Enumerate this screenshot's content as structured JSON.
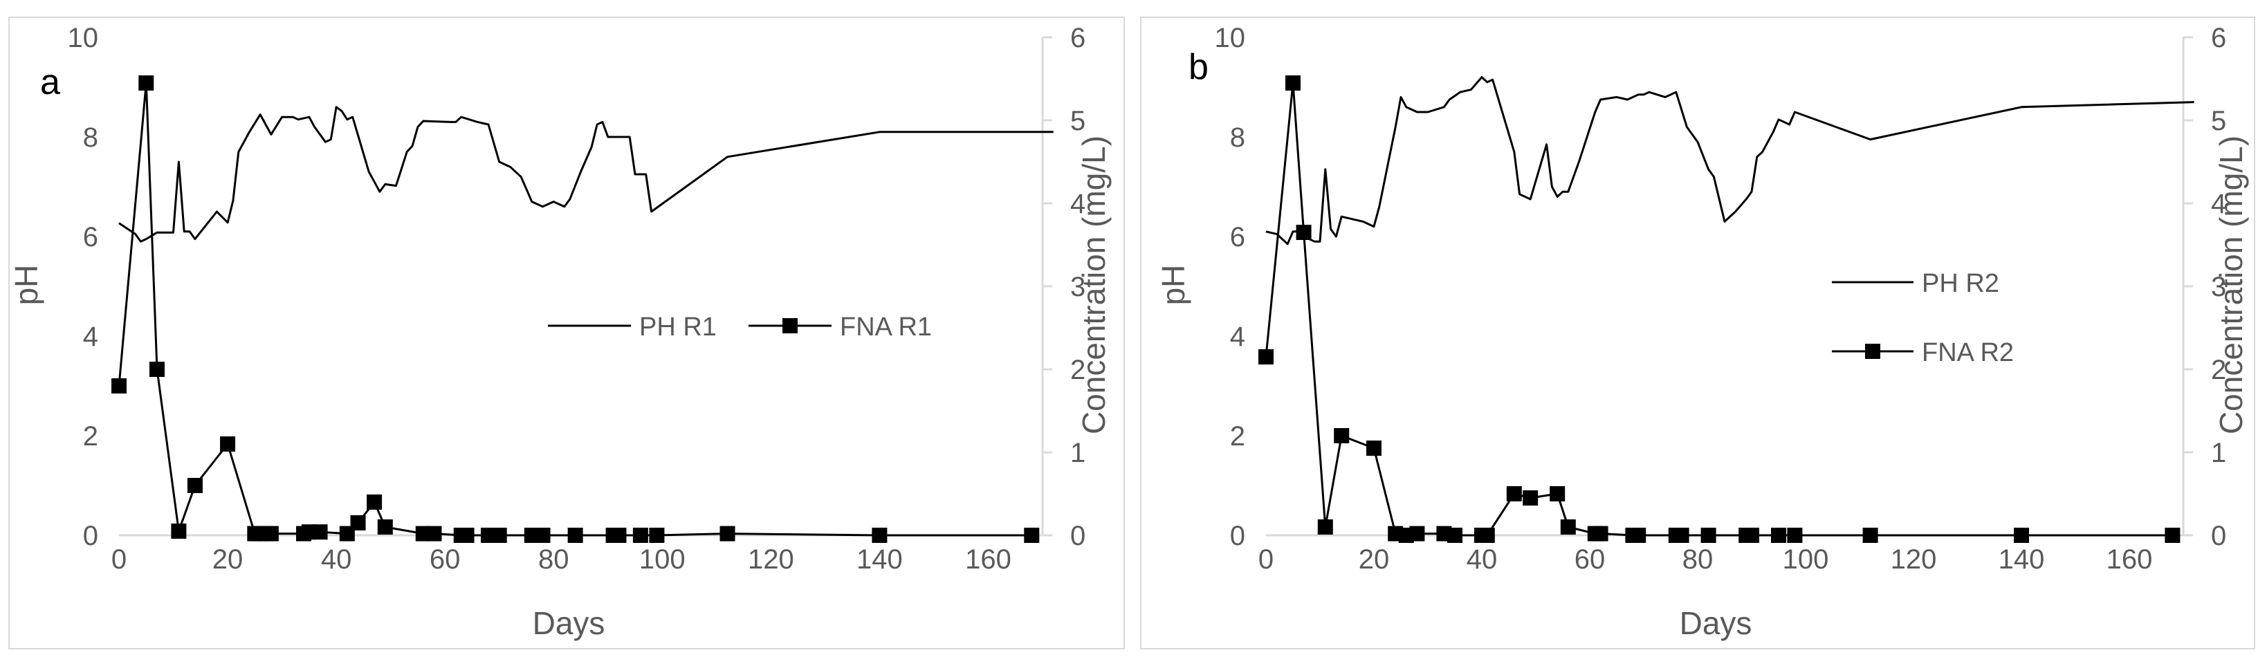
{
  "chart_data": [
    {
      "type": "line",
      "panel_label": "a",
      "xlabel": "Days",
      "ylabel": "pH",
      "y2label": "Concentration (mg/L)",
      "xlim": [
        0,
        170
      ],
      "ylim": [
        0,
        10
      ],
      "y2lim": [
        0,
        6
      ],
      "xticks": [
        "0",
        "20",
        "40",
        "60",
        "80",
        "100",
        "120",
        "140",
        "160"
      ],
      "yticks": [
        "0",
        "2",
        "4",
        "6",
        "8",
        "10"
      ],
      "y2ticks": [
        "0",
        "1",
        "2",
        "3",
        "4",
        "5",
        "6"
      ],
      "legend_position": "middle-right",
      "series": [
        {
          "name": "PH R1",
          "axis": "left",
          "marker": "none",
          "x": [
            0,
            3,
            4,
            5,
            7,
            10,
            11,
            12,
            13,
            14,
            18,
            20,
            21,
            22,
            24,
            26,
            27,
            28,
            30,
            32,
            33,
            35,
            36,
            38,
            39,
            40,
            41,
            42,
            43,
            46,
            47,
            48,
            49,
            51,
            53,
            54,
            55,
            56,
            61,
            62,
            63,
            66,
            68,
            70,
            72,
            74,
            75,
            76,
            78,
            80,
            82,
            83,
            85,
            87,
            88,
            89,
            90,
            91,
            94,
            95,
            96,
            97,
            98,
            112,
            140,
            172
          ],
          "values": [
            6.27,
            6.05,
            5.9,
            5.95,
            6.08,
            6.08,
            7.5,
            6.1,
            6.1,
            5.95,
            6.5,
            6.28,
            6.72,
            7.7,
            8.1,
            8.45,
            8.25,
            8.05,
            8.4,
            8.4,
            8.35,
            8.4,
            8.2,
            7.9,
            7.95,
            8.6,
            8.52,
            8.35,
            8.4,
            7.3,
            7.1,
            6.9,
            7.05,
            7.02,
            7.7,
            7.82,
            8.2,
            8.32,
            8.3,
            8.3,
            8.4,
            8.3,
            8.25,
            7.5,
            7.4,
            7.2,
            6.95,
            6.7,
            6.6,
            6.7,
            6.6,
            6.75,
            7.3,
            7.8,
            8.25,
            8.3,
            8.0,
            8.0,
            8.0,
            7.25,
            7.25,
            7.25,
            6.5,
            7.6,
            8.1,
            8.1
          ]
        },
        {
          "name": "FNA R1",
          "axis": "right",
          "marker": "square",
          "x": [
            0,
            5,
            7,
            11,
            14,
            20,
            25,
            26,
            27,
            28,
            34,
            35,
            37,
            42,
            44,
            47,
            49,
            56,
            58,
            63,
            64,
            68,
            70,
            76,
            78,
            84,
            91,
            92,
            96,
            99,
            112,
            140,
            168
          ],
          "values": [
            1.8,
            5.45,
            2.0,
            0.05,
            0.6,
            1.1,
            0.02,
            0.02,
            0.02,
            0.02,
            0.02,
            0.04,
            0.04,
            0.02,
            0.15,
            0.4,
            0.1,
            0.02,
            0.02,
            0.0,
            0.0,
            0.0,
            0.0,
            0.0,
            0.0,
            0.0,
            0.0,
            0.0,
            0.0,
            0.0,
            0.02,
            0.0,
            0.0
          ]
        }
      ]
    },
    {
      "type": "line",
      "panel_label": "b",
      "xlabel": "Days",
      "ylabel": "pH",
      "y2label": "Concentration (mg/L)",
      "xlim": [
        0,
        170
      ],
      "ylim": [
        0,
        10
      ],
      "y2lim": [
        0,
        6
      ],
      "xticks": [
        "0",
        "20",
        "40",
        "60",
        "80",
        "100",
        "120",
        "140",
        "160"
      ],
      "yticks": [
        "0",
        "2",
        "4",
        "6",
        "8",
        "10"
      ],
      "y2ticks": [
        "0",
        "1",
        "2",
        "3",
        "4",
        "5",
        "6"
      ],
      "legend_position": "middle-right",
      "series": [
        {
          "name": "PH R2",
          "axis": "left",
          "marker": "none",
          "x": [
            0,
            2,
            4,
            5,
            6,
            7,
            9,
            10,
            11,
            12,
            13,
            14,
            18,
            20,
            21,
            24,
            25,
            26,
            27,
            28,
            30,
            33,
            34,
            36,
            38,
            40,
            41,
            42,
            46,
            47,
            49,
            52,
            53,
            54,
            55,
            56,
            58,
            61,
            62,
            65,
            67,
            69,
            70,
            71,
            74,
            75,
            76,
            78,
            80,
            82,
            83,
            85,
            87,
            89,
            90,
            91,
            92,
            94,
            95,
            96,
            97,
            98,
            112,
            140,
            172
          ],
          "values": [
            6.1,
            6.05,
            5.85,
            6.1,
            6.1,
            6.0,
            5.9,
            5.9,
            7.35,
            6.15,
            6.0,
            6.4,
            6.3,
            6.2,
            6.6,
            8.2,
            8.8,
            8.6,
            8.55,
            8.5,
            8.5,
            8.6,
            8.75,
            8.9,
            8.95,
            9.2,
            9.1,
            9.15,
            7.7,
            6.85,
            6.75,
            7.85,
            7.0,
            6.8,
            6.9,
            6.9,
            7.5,
            8.5,
            8.75,
            8.8,
            8.75,
            8.85,
            8.85,
            8.9,
            8.8,
            8.85,
            8.9,
            8.2,
            7.9,
            7.35,
            7.2,
            6.3,
            6.5,
            6.75,
            6.9,
            7.6,
            7.7,
            8.1,
            8.35,
            8.3,
            8.25,
            8.5,
            7.95,
            8.6,
            8.7
          ]
        },
        {
          "name": "FNA R2",
          "axis": "right",
          "marker": "square",
          "x": [
            0,
            5,
            7,
            11,
            14,
            20,
            24,
            26,
            28,
            33,
            35,
            40,
            41,
            46,
            49,
            54,
            56,
            61,
            62,
            68,
            69,
            76,
            77,
            82,
            89,
            90,
            95,
            98,
            112,
            140,
            168
          ],
          "values": [
            2.15,
            5.45,
            3.65,
            0.1,
            1.2,
            1.05,
            0.02,
            0.0,
            0.02,
            0.02,
            0.0,
            0.0,
            0.0,
            0.5,
            0.45,
            0.5,
            0.1,
            0.02,
            0.02,
            0.0,
            0.0,
            0.0,
            0.0,
            0.0,
            0.0,
            0.0,
            0.0,
            0.0,
            0.0,
            0.0,
            0.0
          ]
        }
      ]
    }
  ]
}
